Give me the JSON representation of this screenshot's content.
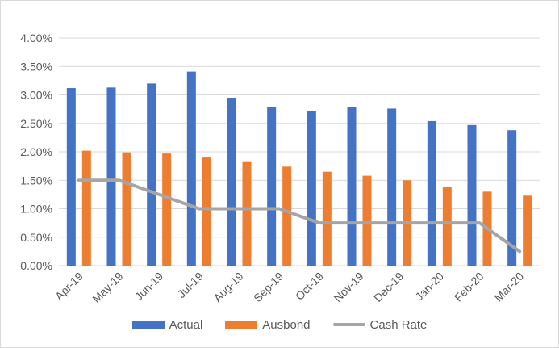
{
  "colors": {
    "actual": "#4472C4",
    "ausbond": "#ED7D31",
    "cash_rate": "#A5A5A5",
    "grid": "#d9d9d9",
    "text": "#595959"
  },
  "chart_data": {
    "type": "bar",
    "title": "",
    "xlabel": "",
    "ylabel": "",
    "categories": [
      "Apr-19",
      "May-19",
      "Jun-19",
      "Jul-19",
      "Aug-19",
      "Sep-19",
      "Oct-19",
      "Nov-19",
      "Dec-19",
      "Jan-20",
      "Feb-20",
      "Mar-20"
    ],
    "ylim": [
      0,
      4.0
    ],
    "yticks": [
      "0.00%",
      "0.50%",
      "1.00%",
      "1.50%",
      "2.00%",
      "2.50%",
      "3.00%",
      "3.50%",
      "4.00%"
    ],
    "grid": true,
    "legend_position": "bottom",
    "series": [
      {
        "name": "Actual",
        "kind": "bar",
        "color": "#4472C4",
        "values": [
          3.12,
          3.13,
          3.2,
          3.41,
          2.95,
          2.79,
          2.72,
          2.78,
          2.76,
          2.54,
          2.47,
          2.38
        ]
      },
      {
        "name": "Ausbond",
        "kind": "bar",
        "color": "#ED7D31",
        "values": [
          2.02,
          1.99,
          1.97,
          1.9,
          1.82,
          1.74,
          1.65,
          1.58,
          1.5,
          1.39,
          1.3,
          1.23
        ]
      },
      {
        "name": "Cash Rate",
        "kind": "line",
        "color": "#A5A5A5",
        "values": [
          1.5,
          1.5,
          1.25,
          1.0,
          1.0,
          1.0,
          0.75,
          0.75,
          0.75,
          0.75,
          0.75,
          0.25
        ]
      }
    ]
  }
}
